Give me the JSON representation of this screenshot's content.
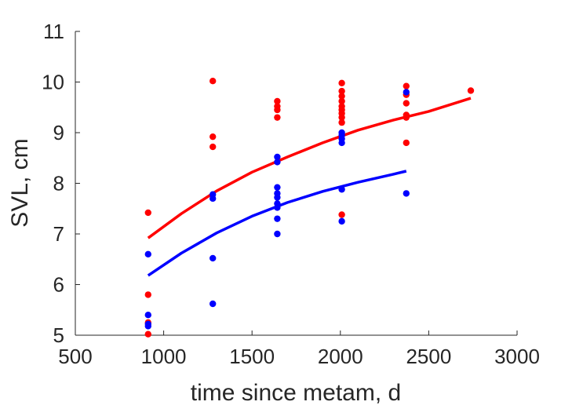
{
  "chart_data": {
    "type": "scatter",
    "title": "",
    "xlabel": "time since metam, d",
    "ylabel": "SVL, cm",
    "xlim": [
      500,
      3000
    ],
    "ylim": [
      5,
      11
    ],
    "xticks": [
      500,
      1000,
      1500,
      2000,
      2500,
      3000
    ],
    "yticks": [
      5,
      6,
      7,
      8,
      9,
      10,
      11
    ],
    "grid": false,
    "legend": "none",
    "series": [
      {
        "color": "#ff0000",
        "points": [
          [
            912,
            7.42
          ],
          [
            912,
            5.8
          ],
          [
            912,
            5.25
          ],
          [
            912,
            5.02
          ],
          [
            1278,
            10.02
          ],
          [
            1278,
            8.92
          ],
          [
            1278,
            8.72
          ],
          [
            1643,
            9.62
          ],
          [
            1643,
            9.52
          ],
          [
            1643,
            9.45
          ],
          [
            1643,
            9.3
          ],
          [
            2008,
            9.98
          ],
          [
            2008,
            9.82
          ],
          [
            2008,
            9.72
          ],
          [
            2008,
            9.62
          ],
          [
            2008,
            9.52
          ],
          [
            2008,
            9.45
          ],
          [
            2008,
            9.38
          ],
          [
            2008,
            9.3
          ],
          [
            2008,
            9.2
          ],
          [
            2008,
            7.38
          ],
          [
            2373,
            9.92
          ],
          [
            2373,
            9.75
          ],
          [
            2373,
            9.58
          ],
          [
            2373,
            9.35
          ],
          [
            2373,
            9.3
          ],
          [
            2373,
            8.8
          ],
          [
            2738,
            9.83
          ]
        ],
        "fit": [
          [
            912,
            6.92
          ],
          [
            1100,
            7.4
          ],
          [
            1300,
            7.85
          ],
          [
            1500,
            8.22
          ],
          [
            1700,
            8.52
          ],
          [
            1900,
            8.8
          ],
          [
            2100,
            9.05
          ],
          [
            2300,
            9.25
          ],
          [
            2500,
            9.42
          ],
          [
            2738,
            9.68
          ]
        ]
      },
      {
        "color": "#0000ff",
        "points": [
          [
            912,
            6.6
          ],
          [
            912,
            5.4
          ],
          [
            912,
            5.22
          ],
          [
            912,
            5.18
          ],
          [
            1278,
            7.78
          ],
          [
            1278,
            7.7
          ],
          [
            1278,
            6.52
          ],
          [
            1278,
            5.62
          ],
          [
            1643,
            8.52
          ],
          [
            1643,
            8.42
          ],
          [
            1643,
            7.92
          ],
          [
            1643,
            7.8
          ],
          [
            1643,
            7.72
          ],
          [
            1643,
            7.6
          ],
          [
            1643,
            7.52
          ],
          [
            1643,
            7.3
          ],
          [
            1643,
            7.0
          ],
          [
            2008,
            9.0
          ],
          [
            2008,
            8.95
          ],
          [
            2008,
            8.88
          ],
          [
            2008,
            8.8
          ],
          [
            2008,
            7.88
          ],
          [
            2008,
            7.25
          ],
          [
            2373,
            9.8
          ],
          [
            2373,
            7.8
          ]
        ],
        "fit": [
          [
            912,
            6.18
          ],
          [
            1100,
            6.62
          ],
          [
            1300,
            7.02
          ],
          [
            1500,
            7.35
          ],
          [
            1700,
            7.62
          ],
          [
            1900,
            7.84
          ],
          [
            2100,
            8.02
          ],
          [
            2300,
            8.18
          ],
          [
            2373,
            8.24
          ]
        ]
      }
    ]
  }
}
